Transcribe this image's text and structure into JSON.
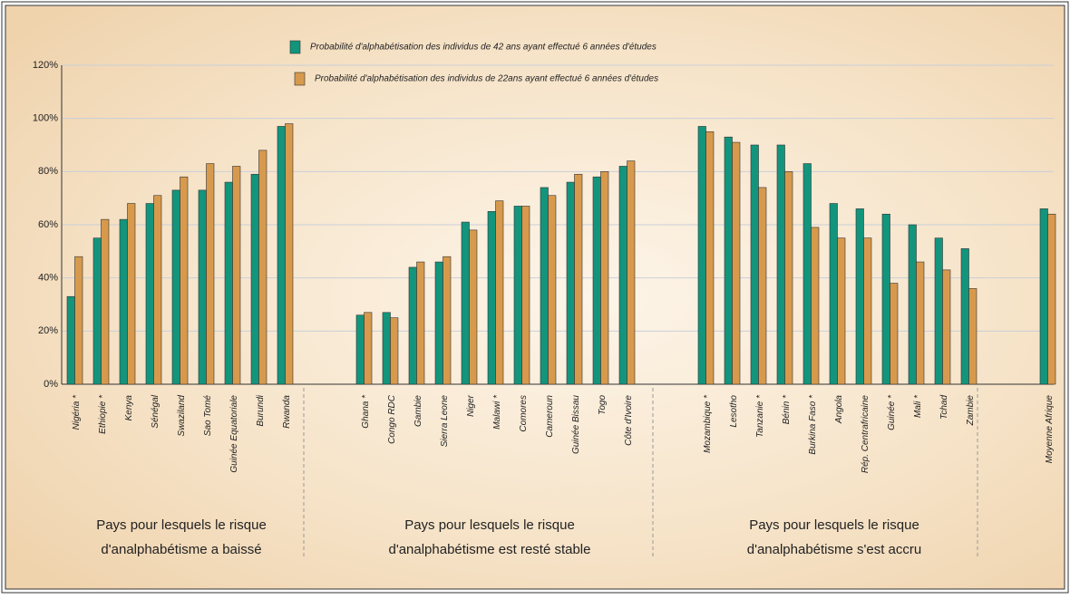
{
  "chart_data": {
    "type": "bar",
    "categories": [
      "Nigéria *",
      "Ethiopie *",
      "Kenya",
      "Sénégal",
      "Swaziland",
      "Sao Tomé",
      "Guinée Equatoriale",
      "Burundi",
      "Rwanda",
      null,
      null,
      "Ghana *",
      "Congo RDC",
      "Gambie",
      "Sierra Leone",
      "Niger",
      "Malawi *",
      "Comores",
      "Cameroun",
      "Guinée Bissau",
      "Togo",
      "Côte d'Ivoire",
      null,
      null,
      "Mozambique *",
      "Lesotho",
      "Tanzanie *",
      "Bénin *",
      "Burkina Faso *",
      "Angola",
      "Rép. Centrafricaine",
      "Guinée *",
      "Mali *",
      "Tchad",
      "Zambie",
      null,
      null,
      "Moyenne Afrique"
    ],
    "series": [
      {
        "name": "Probabilité d'alphabétisation des individus de 42 ans ayant effectué 6 années d'études",
        "color": "#12957c",
        "values": [
          33,
          55,
          62,
          68,
          73,
          73,
          76,
          79,
          97,
          null,
          null,
          26,
          27,
          44,
          46,
          61,
          65,
          67,
          74,
          76,
          78,
          82,
          null,
          null,
          97,
          93,
          90,
          90,
          83,
          68,
          66,
          64,
          60,
          55,
          51,
          null,
          null,
          66
        ]
      },
      {
        "name": "Probabilité d'alphabétisation des individus de 22ans ayant effectué 6 années d'études",
        "color": "#d79a4d",
        "values": [
          48,
          62,
          68,
          71,
          78,
          83,
          82,
          88,
          98,
          null,
          null,
          27,
          25,
          46,
          48,
          58,
          69,
          67,
          71,
          79,
          80,
          84,
          null,
          null,
          95,
          91,
          74,
          80,
          59,
          55,
          55,
          38,
          46,
          43,
          36,
          null,
          null,
          64
        ]
      }
    ],
    "ylim": [
      0,
      120
    ],
    "yticks": [
      {
        "value": 0,
        "label": "0%"
      },
      {
        "value": 20,
        "label": "20%"
      },
      {
        "value": 40,
        "label": "40%"
      },
      {
        "value": 60,
        "label": "60%"
      },
      {
        "value": 80,
        "label": "80%"
      },
      {
        "value": 100,
        "label": "100%"
      },
      {
        "value": 120,
        "label": "120%"
      }
    ],
    "grid": true,
    "annotations": [
      {
        "lines": [
          "Pays pour lesquels le risque",
          "d'analphabétisme a baissé"
        ]
      },
      {
        "lines": [
          "Pays pour lesquels le risque",
          "d'analphabétisme est resté stable"
        ]
      },
      {
        "lines": [
          "Pays pour lesquels le risque",
          "d'analphabétisme s'est accru"
        ]
      }
    ]
  }
}
